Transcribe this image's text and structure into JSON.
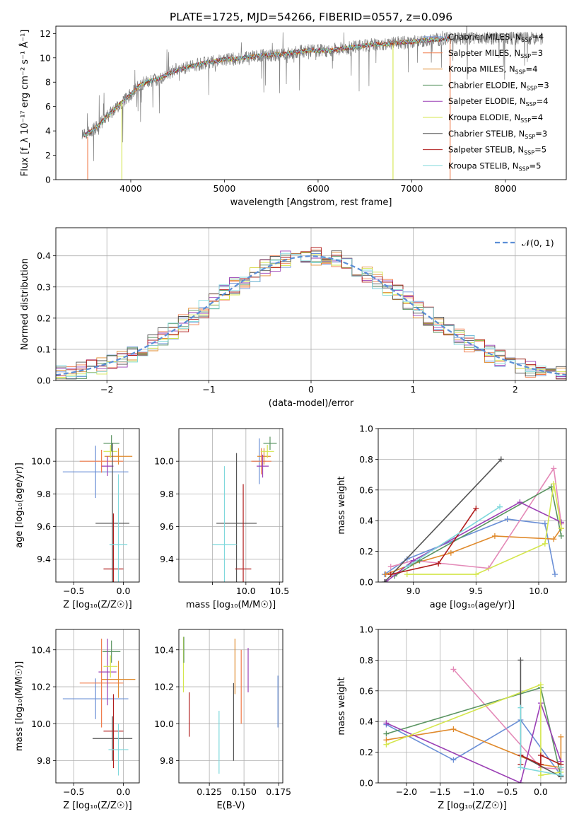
{
  "chart_data": [
    {
      "id": "spectrum",
      "type": "line",
      "title": "PLATE=1725, MJD=54266, FIBERID=0557, z=0.096",
      "xlabel": "wavelength [Angstrom, rest frame]",
      "ylabel": "Flux [f_λ 10⁻¹⁷ erg cm⁻² s⁻¹ Å⁻¹]",
      "xlim": [
        3200,
        8650
      ],
      "ylim": [
        0,
        12.6
      ],
      "xticks": [
        4000,
        5000,
        6000,
        7000,
        8000
      ],
      "yticks": [
        0,
        2,
        4,
        6,
        8,
        10,
        12
      ],
      "legend": "upper-right",
      "observed_spectrum": {
        "x": [
          3500,
          3600,
          3700,
          3800,
          3900,
          4000,
          4100,
          4200,
          4300,
          4400,
          4500,
          4600,
          4700,
          4800,
          4900,
          5000,
          5100,
          5200,
          5300,
          5400,
          5500,
          5600,
          5700,
          5800,
          5900,
          6000,
          6100,
          6200,
          6300,
          6400,
          6500,
          6600,
          6700,
          6800,
          6900,
          7000,
          7100,
          7200,
          7300,
          7400
        ],
        "y": [
          3.6,
          4.1,
          4.8,
          5.6,
          6.3,
          7.0,
          7.8,
          8.1,
          8.3,
          8.7,
          9.0,
          9.2,
          9.4,
          9.6,
          9.7,
          9.9,
          9.9,
          10.0,
          10.1,
          10.2,
          10.2,
          10.3,
          10.4,
          10.5,
          10.6,
          10.6,
          10.6,
          10.7,
          10.8,
          10.9,
          11.0,
          11.1,
          11.1,
          11.2,
          11.3,
          11.3,
          11.4,
          11.5,
          11.5,
          11.6
        ]
      },
      "series": [
        {
          "name": "Chabrier MILES, N_SSP=4",
          "label_main": "Chabrier MILES, N",
          "label_sub": "SSP",
          "label_end": "=4",
          "color": "#6a8fd6"
        },
        {
          "name": "Salpeter MILES, N_SSP=3",
          "label_main": "Salpeter MILES, N",
          "label_sub": "SSP",
          "label_end": "=3",
          "color": "#f07b4a"
        },
        {
          "name": "Kroupa MILES, N_SSP=4",
          "label_main": "Kroupa MILES, N",
          "label_sub": "SSP",
          "label_end": "=4",
          "color": "#e08a2c"
        },
        {
          "name": "Chabrier ELODIE, N_SSP=3",
          "label_main": "Chabrier ELODIE, N",
          "label_sub": "SSP",
          "label_end": "=3",
          "color": "#5a9461"
        },
        {
          "name": "Salpeter ELODIE, N_SSP=4",
          "label_main": "Salpeter ELODIE, N",
          "label_sub": "SSP",
          "label_end": "=4",
          "color": "#9b40b5"
        },
        {
          "name": "Kroupa ELODIE, N_SSP=4",
          "label_main": "Kroupa ELODIE, N",
          "label_sub": "SSP",
          "label_end": "=4",
          "color": "#d4e64c"
        },
        {
          "name": "Chabrier STELIB, N_SSP=3",
          "label_main": "Chabrier STELIB, N",
          "label_sub": "SSP",
          "label_end": "=3",
          "color": "#555555"
        },
        {
          "name": "Salpeter STELIB, N_SSP=5",
          "label_main": "Salpeter STELIB, N",
          "label_sub": "SSP",
          "label_end": "=5",
          "color": "#b01c1c"
        },
        {
          "name": "Kroupa STELIB, N_SSP=5",
          "label_main": "Kroupa STELIB, N",
          "label_sub": "SSP",
          "label_end": "=5",
          "color": "#7fd8dc"
        }
      ]
    },
    {
      "id": "residuals",
      "type": "line",
      "xlabel": "(data-model)/error",
      "ylabel": "Normed distribution",
      "xlim": [
        -2.5,
        2.5
      ],
      "ylim": [
        0,
        0.49
      ],
      "xticks": [
        -2,
        -1,
        0,
        1,
        2
      ],
      "xtick_labels": [
        "−2",
        "−1",
        "0",
        "1",
        "2"
      ],
      "yticks": [
        0.0,
        0.1,
        0.2,
        0.3,
        0.4
      ],
      "ytick_labels": [
        "0.0",
        "0.1",
        "0.2",
        "0.3",
        "0.4"
      ],
      "grid": true,
      "legend": "upper-right",
      "reference_curve": {
        "name": "N(0,1)",
        "label": "𝒩(0, 1)",
        "color": "#5b8ed6",
        "style": "dashed"
      },
      "histogram_bin_width": 0.1
    },
    {
      "id": "age-vs-Z",
      "type": "scatter",
      "xlabel": "Z [log₁₀(Z/Z☉)]",
      "ylabel": "age  [log₁₀(age/yr)]",
      "xlim": [
        -0.68,
        0.16
      ],
      "ylim": [
        9.26,
        10.2
      ],
      "xticks": [
        -0.5,
        0.0
      ],
      "xtick_labels": [
        "−0.5",
        "0.0"
      ],
      "yticks": [
        9.4,
        9.6,
        9.8,
        10.0
      ],
      "ytick_labels": [
        "9.4",
        "9.6",
        "9.8",
        "10.0"
      ],
      "grid": true,
      "points": [
        {
          "x": -0.28,
          "y": 9.935,
          "xerr": 0.33,
          "yerr": 0.16,
          "color": "#6a8fd6"
        },
        {
          "x": -0.05,
          "y": 10.03,
          "xerr": 0.14,
          "yerr": 0.05,
          "color": "#e08a2c"
        },
        {
          "x": -0.22,
          "y": 10.0,
          "xerr": 0.22,
          "yerr": 0.07,
          "color": "#f07b4a"
        },
        {
          "x": -0.12,
          "y": 10.11,
          "xerr": 0.08,
          "yerr": 0.05,
          "color": "#5a9461"
        },
        {
          "x": -0.16,
          "y": 9.97,
          "xerr": 0.06,
          "yerr": 0.06,
          "color": "#9b40b5"
        },
        {
          "x": -0.13,
          "y": 10.06,
          "xerr": 0.07,
          "yerr": 0.04,
          "color": "#d4e64c"
        },
        {
          "x": -0.11,
          "y": 9.62,
          "xerr": 0.17,
          "yerr": 0.49,
          "color": "#555555"
        },
        {
          "x": -0.1,
          "y": 9.34,
          "xerr": 0.1,
          "yerr": 0.34,
          "color": "#b01c1c"
        },
        {
          "x": -0.05,
          "y": 9.49,
          "xerr": 0.09,
          "yerr": 0.43,
          "color": "#7fd8dc"
        }
      ]
    },
    {
      "id": "age-vs-mass",
      "type": "scatter",
      "xlabel": "mass [log₁₀(M/M☉)]",
      "ylabel": "",
      "xlim": [
        9.0,
        10.55
      ],
      "ylim": [
        9.26,
        10.2
      ],
      "xticks": [
        9.5,
        10.0,
        10.5
      ],
      "xtick_labels": [
        "",
        "10.0",
        "10.5"
      ],
      "yticks": [
        9.4,
        9.6,
        9.8,
        10.0
      ],
      "ytick_labels": [
        "9.4",
        "9.6",
        "9.8",
        "10.0"
      ],
      "grid": true,
      "points": [
        {
          "x": 10.2,
          "y": 10.0,
          "xerr": 0.1,
          "yerr": 0.14,
          "color": "#6a8fd6"
        },
        {
          "x": 10.27,
          "y": 10.03,
          "xerr": 0.1,
          "yerr": 0.05,
          "color": "#e08a2c"
        },
        {
          "x": 10.23,
          "y": 10.0,
          "xerr": 0.15,
          "yerr": 0.08,
          "color": "#f07b4a"
        },
        {
          "x": 10.36,
          "y": 10.11,
          "xerr": 0.1,
          "yerr": 0.04,
          "color": "#5a9461"
        },
        {
          "x": 10.25,
          "y": 9.97,
          "xerr": 0.09,
          "yerr": 0.07,
          "color": "#9b40b5"
        },
        {
          "x": 10.32,
          "y": 10.06,
          "xerr": 0.1,
          "yerr": 0.04,
          "color": "#d4e64c"
        },
        {
          "x": 9.86,
          "y": 9.62,
          "xerr": 0.3,
          "yerr": 0.43,
          "color": "#555555"
        },
        {
          "x": 9.96,
          "y": 9.34,
          "xerr": 0.12,
          "yerr": 0.52,
          "color": "#b01c1c"
        },
        {
          "x": 9.68,
          "y": 9.49,
          "xerr": 0.18,
          "yerr": 0.48,
          "color": "#7fd8dc"
        }
      ]
    },
    {
      "id": "mass-weight-vs-age",
      "type": "line",
      "xlabel": "age  [log₁₀(age/yr)]",
      "ylabel": "mass weight",
      "xlim": [
        8.72,
        10.22
      ],
      "ylim": [
        0,
        1.0
      ],
      "xticks": [
        9.0,
        9.5,
        10.0
      ],
      "xtick_labels": [
        "9.0",
        "9.5",
        "10.0"
      ],
      "yticks": [
        0.0,
        0.2,
        0.4,
        0.6,
        0.8,
        1.0
      ],
      "ytick_labels": [
        "0.0",
        "0.2",
        "0.4",
        "0.6",
        "0.8",
        "1.0"
      ],
      "grid": true,
      "series": [
        {
          "name": "Chabrier MILES",
          "color": "#6a8fd6",
          "x": [
            8.77,
            8.95,
            9.75,
            10.05,
            10.13
          ],
          "y": [
            0.05,
            0.15,
            0.41,
            0.38,
            0.05
          ]
        },
        {
          "name": "Salpeter MILES",
          "color": "#e08a2c",
          "x": [
            8.78,
            9.0,
            9.3,
            9.65,
            10.12,
            10.18
          ],
          "y": [
            0.05,
            0.12,
            0.19,
            0.3,
            0.28,
            0.35
          ]
        },
        {
          "name": "Kroupa MILES",
          "color": "#e48ab8",
          "x": [
            8.82,
            9.0,
            9.6,
            10.12,
            10.18
          ],
          "y": [
            0.1,
            0.14,
            0.09,
            0.74,
            0.38
          ]
        },
        {
          "name": "Chabrier ELODIE",
          "color": "#5a9461",
          "x": [
            8.85,
            9.05,
            10.1,
            10.18
          ],
          "y": [
            0.04,
            0.14,
            0.62,
            0.3
          ]
        },
        {
          "name": "Salpeter ELODIE",
          "color": "#9b40b5",
          "x": [
            8.78,
            9.0,
            9.85,
            10.18
          ],
          "y": [
            0.0,
            0.14,
            0.52,
            0.39
          ]
        },
        {
          "name": "Kroupa ELODIE",
          "color": "#d4e64c",
          "x": [
            8.95,
            9.5,
            10.05,
            10.12,
            10.18
          ],
          "y": [
            0.05,
            0.05,
            0.25,
            0.64,
            0.35
          ]
        },
        {
          "name": "Chabrier STELIB",
          "color": "#555555",
          "x": [
            8.77,
            9.7
          ],
          "y": [
            0.0,
            0.8
          ]
        },
        {
          "name": "Salpeter STELIB",
          "color": "#b01c1c",
          "x": [
            8.82,
            9.2,
            9.5
          ],
          "y": [
            0.05,
            0.12,
            0.48
          ]
        },
        {
          "name": "Kroupa STELIB",
          "color": "#7fd8dc",
          "x": [
            8.95,
            9.69
          ],
          "y": [
            0.1,
            0.49
          ]
        }
      ]
    },
    {
      "id": "mass-vs-Z",
      "type": "scatter",
      "xlabel": "Z [log₁₀(Z/Z☉)]",
      "ylabel": "mass [log₁₀(M/M☉)]",
      "xlim": [
        -0.68,
        0.16
      ],
      "ylim": [
        9.68,
        10.51
      ],
      "xticks": [
        -0.5,
        0.0
      ],
      "xtick_labels": [
        "−0.5",
        "0.0"
      ],
      "yticks": [
        9.8,
        10.0,
        10.2,
        10.4
      ],
      "ytick_labels": [
        "9.8",
        "10.0",
        "10.2",
        "10.4"
      ],
      "grid": true,
      "points": [
        {
          "x": -0.28,
          "y": 10.135,
          "xerr": 0.33,
          "yerr": 0.11,
          "color": "#6a8fd6"
        },
        {
          "x": -0.05,
          "y": 10.24,
          "xerr": 0.17,
          "yerr": 0.1,
          "color": "#e08a2c"
        },
        {
          "x": -0.22,
          "y": 10.22,
          "xerr": 0.22,
          "yerr": 0.24,
          "color": "#f07b4a"
        },
        {
          "x": -0.12,
          "y": 10.39,
          "xerr": 0.09,
          "yerr": 0.06,
          "color": "#5a9461"
        },
        {
          "x": -0.16,
          "y": 10.28,
          "xerr": 0.09,
          "yerr": 0.18,
          "color": "#9b40b5"
        },
        {
          "x": -0.13,
          "y": 10.31,
          "xerr": 0.07,
          "yerr": 0.06,
          "color": "#d4e64c"
        },
        {
          "x": -0.11,
          "y": 9.92,
          "xerr": 0.2,
          "yerr": 0.12,
          "color": "#555555"
        },
        {
          "x": -0.1,
          "y": 9.96,
          "xerr": 0.1,
          "yerr": 0.2,
          "color": "#b01c1c"
        },
        {
          "x": -0.05,
          "y": 9.86,
          "xerr": 0.1,
          "yerr": 0.14,
          "color": "#7fd8dc"
        }
      ]
    },
    {
      "id": "mass-vs-EBV",
      "type": "scatter",
      "xlabel": "E(B-V)",
      "ylabel": "",
      "xlim": [
        0.103,
        0.178
      ],
      "ylim": [
        9.68,
        10.51
      ],
      "xticks": [
        0.125,
        0.15,
        0.175
      ],
      "xtick_labels": [
        "0.125",
        "0.150",
        "0.175"
      ],
      "yticks": [
        9.8,
        10.0,
        10.2,
        10.4
      ],
      "ytick_labels": [
        "9.8",
        "10.0",
        "10.2",
        "10.4"
      ],
      "grid": true,
      "points": [
        {
          "x": 0.1063,
          "y": 10.32,
          "yerr": 0.15,
          "color": "#d4e64c"
        },
        {
          "x": 0.1066,
          "y": 10.4,
          "yerr": 0.07,
          "color": "#5a9461"
        },
        {
          "x": 0.1105,
          "y": 10.05,
          "yerr": 0.12,
          "color": "#b01c1c"
        },
        {
          "x": 0.132,
          "y": 9.9,
          "yerr": 0.17,
          "color": "#7fd8dc"
        },
        {
          "x": 0.1425,
          "y": 10.01,
          "yerr": 0.21,
          "color": "#555555"
        },
        {
          "x": 0.1435,
          "y": 10.31,
          "yerr": 0.15,
          "color": "#e08a2c"
        },
        {
          "x": 0.148,
          "y": 10.2,
          "yerr": 0.2,
          "color": "#f07b4a"
        },
        {
          "x": 0.153,
          "y": 10.29,
          "yerr": 0.12,
          "color": "#9b40b5"
        },
        {
          "x": 0.1745,
          "y": 10.12,
          "yerr": 0.14,
          "color": "#6a8fd6"
        }
      ]
    },
    {
      "id": "mass-weight-vs-Z",
      "type": "line",
      "xlabel": "Z [log₁₀(Z/Z☉)]",
      "ylabel": "mass weight",
      "xlim": [
        -2.42,
        0.38
      ],
      "ylim": [
        0,
        1.0
      ],
      "xticks": [
        -2.0,
        -1.5,
        -1.0,
        -0.5,
        0.0
      ],
      "xtick_labels": [
        "−2.0",
        "−1.5",
        "−1.0",
        "−0.5",
        "0.0"
      ],
      "yticks": [
        0.0,
        0.2,
        0.4,
        0.6,
        0.8,
        1.0
      ],
      "ytick_labels": [
        "0.0",
        "0.2",
        "0.4",
        "0.6",
        "0.8",
        "1.0"
      ],
      "grid": true,
      "series": [
        {
          "name": "Chabrier MILES",
          "color": "#6a8fd6",
          "x": [
            -2.3,
            -1.3,
            -0.3,
            0.3,
            0.3
          ],
          "y": [
            0.38,
            0.15,
            0.41,
            0.05,
            0.1
          ]
        },
        {
          "name": "Salpeter MILES",
          "color": "#e08a2c",
          "x": [
            -2.3,
            -1.3,
            0.0,
            0.3,
            0.3
          ],
          "y": [
            0.28,
            0.35,
            0.12,
            0.1,
            0.3
          ]
        },
        {
          "name": "Kroupa MILES",
          "color": "#e48ab8",
          "x": [
            -1.3,
            0.0,
            0.3
          ],
          "y": [
            0.74,
            0.1,
            0.09
          ]
        },
        {
          "name": "Chabrier ELODIE",
          "color": "#5a9461",
          "x": [
            -2.3,
            0.0,
            0.3
          ],
          "y": [
            0.32,
            0.62,
            0.04
          ]
        },
        {
          "name": "Salpeter ELODIE",
          "color": "#9b40b5",
          "x": [
            -2.3,
            -0.3,
            0.0,
            0.3
          ],
          "y": [
            0.39,
            0.0,
            0.52,
            0.14
          ]
        },
        {
          "name": "Kroupa ELODIE",
          "color": "#d4e64c",
          "x": [
            -2.3,
            0.0,
            0.0,
            0.3
          ],
          "y": [
            0.25,
            0.64,
            0.05,
            0.07
          ]
        },
        {
          "name": "Chabrier STELIB",
          "color": "#555555",
          "x": [
            -0.3,
            -0.3,
            0.3
          ],
          "y": [
            0.8,
            0.18,
            0.04
          ]
        },
        {
          "name": "Salpeter STELIB",
          "color": "#b01c1c",
          "x": [
            -0.3,
            -0.3,
            0.0,
            0.0,
            0.3
          ],
          "y": [
            0.12,
            0.18,
            0.12,
            0.18,
            0.12
          ]
        },
        {
          "name": "Kroupa STELIB",
          "color": "#7fd8dc",
          "x": [
            -0.3,
            -0.3,
            0.3,
            0.3
          ],
          "y": [
            0.49,
            0.1,
            0.05,
            0.1
          ]
        }
      ]
    }
  ]
}
